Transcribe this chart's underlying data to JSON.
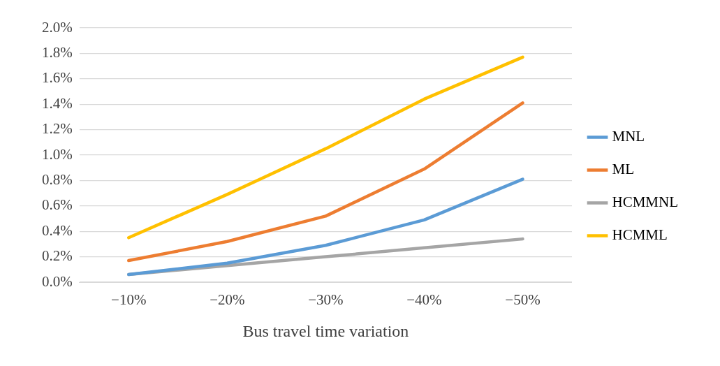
{
  "chart_data": {
    "type": "line",
    "xlabel": "Bus travel time variation",
    "categories": [
      "−10%",
      "−20%",
      "−30%",
      "−40%",
      "−50%"
    ],
    "series": [
      {
        "name": "MNL",
        "color": "#5b9bd5",
        "values": [
          0.06,
          0.15,
          0.29,
          0.49,
          0.81
        ]
      },
      {
        "name": "ML",
        "color": "#ed7d31",
        "values": [
          0.17,
          0.32,
          0.52,
          0.89,
          1.41
        ]
      },
      {
        "name": "HCMMNL",
        "color": "#a5a5a5",
        "values": [
          0.06,
          0.13,
          0.2,
          0.27,
          0.34
        ]
      },
      {
        "name": "HCMML",
        "color": "#ffc000",
        "values": [
          0.35,
          0.69,
          1.05,
          1.44,
          1.77
        ]
      }
    ],
    "ylim": [
      0,
      2
    ],
    "yticks": [
      {
        "value": 0,
        "label": "0.0%"
      },
      {
        "value": 0.2,
        "label": "0.2%"
      },
      {
        "value": 0.4,
        "label": "0.4%"
      },
      {
        "value": 0.6,
        "label": "0.6%"
      },
      {
        "value": 0.8,
        "label": "0.8%"
      },
      {
        "value": 1,
        "label": "1.0%"
      },
      {
        "value": 1.2,
        "label": "1.2%"
      },
      {
        "value": 1.4,
        "label": "1.4%"
      },
      {
        "value": 1.6,
        "label": "1.6%"
      },
      {
        "value": 1.8,
        "label": "1.8%"
      },
      {
        "value": 2,
        "label": "2.0%"
      }
    ],
    "grid": "y",
    "legend": "right",
    "marker": "none",
    "line_style": "solid"
  }
}
